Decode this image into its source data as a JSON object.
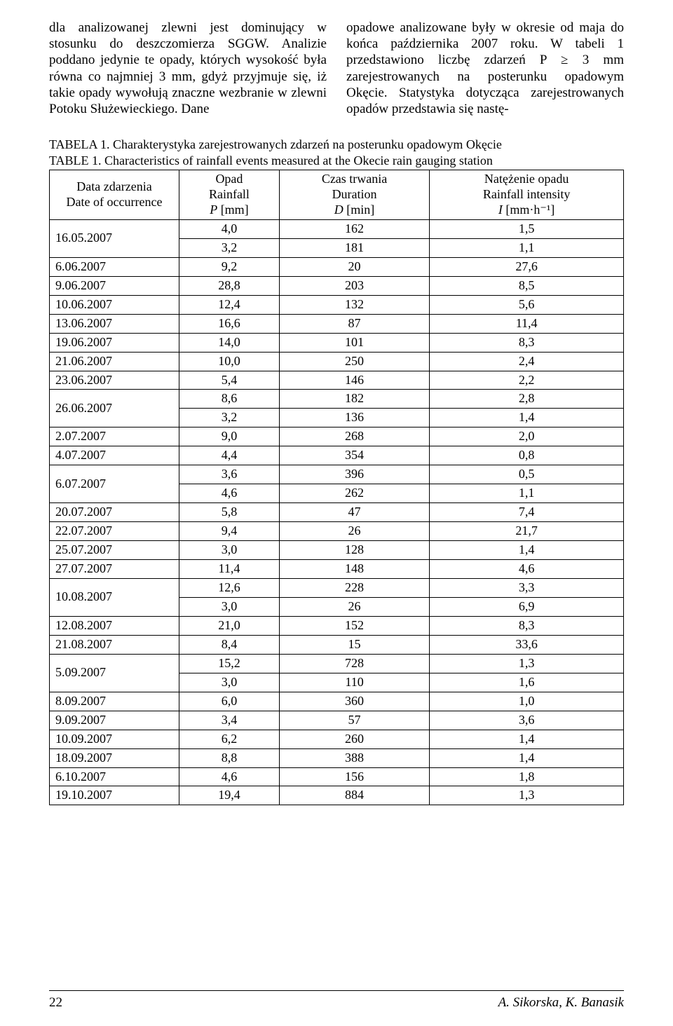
{
  "paragraphs": {
    "left": "dla analizowanej zlewni jest dominujący w stosunku do deszczomierza SGGW. Analizie poddano jedynie te opady, których wysokość była równa co najmniej 3 mm, gdyż przyjmuje się, iż takie opady wywołują znaczne wezbranie w zlewni Potoku Służewieckiego. Dane",
    "right": "opadowe analizowane były w okresie od maja do końca października 2007 roku. W tabeli 1 przedstawiono liczbę zdarzeń P ≥ 3 mm zarejestrowanych na posterunku opadowym Okęcie. Statystyka dotycząca zarejestrowanych opadów przedstawia się nastę-"
  },
  "tableCaption": {
    "line1": "TABELA 1. Charakterystyka zarejestrowanych zdarzeń na posterunku opadowym Okęcie",
    "line2": "TABLE 1. Characteristics of rainfall events measured at the Okecie rain gauging station"
  },
  "table": {
    "type": "table",
    "columns": [
      {
        "key": "date",
        "label_pl": "Data zdarzenia",
        "label_en": "Date of occurrence",
        "unit": ""
      },
      {
        "key": "P",
        "label_pl": "Opad",
        "label_en": "Rainfall",
        "symbol": "P",
        "unit": "[mm]"
      },
      {
        "key": "D",
        "label_pl": "Czas trwania",
        "label_en": "Duration",
        "symbol": "D",
        "unit": "[min]"
      },
      {
        "key": "I",
        "label_pl": "Natężenie opadu",
        "label_en": "Rainfall intensity",
        "symbol": "I",
        "unit": "[mm·h⁻¹]"
      }
    ],
    "groups": [
      {
        "date": "16.05.2007",
        "rows": [
          {
            "P": "4,0",
            "D": "162",
            "I": "1,5"
          },
          {
            "P": "3,2",
            "D": "181",
            "I": "1,1"
          }
        ]
      },
      {
        "date": "6.06.2007",
        "rows": [
          {
            "P": "9,2",
            "D": "20",
            "I": "27,6"
          }
        ]
      },
      {
        "date": "9.06.2007",
        "rows": [
          {
            "P": "28,8",
            "D": "203",
            "I": "8,5"
          }
        ]
      },
      {
        "date": "10.06.2007",
        "rows": [
          {
            "P": "12,4",
            "D": "132",
            "I": "5,6"
          }
        ]
      },
      {
        "date": "13.06.2007",
        "rows": [
          {
            "P": "16,6",
            "D": "87",
            "I": "11,4"
          }
        ]
      },
      {
        "date": "19.06.2007",
        "rows": [
          {
            "P": "14,0",
            "D": "101",
            "I": "8,3"
          }
        ]
      },
      {
        "date": "21.06.2007",
        "rows": [
          {
            "P": "10,0",
            "D": "250",
            "I": "2,4"
          }
        ]
      },
      {
        "date": "23.06.2007",
        "rows": [
          {
            "P": "5,4",
            "D": "146",
            "I": "2,2"
          }
        ]
      },
      {
        "date": "26.06.2007",
        "rows": [
          {
            "P": "8,6",
            "D": "182",
            "I": "2,8"
          },
          {
            "P": "3,2",
            "D": "136",
            "I": "1,4"
          }
        ]
      },
      {
        "date": "2.07.2007",
        "rows": [
          {
            "P": "9,0",
            "D": "268",
            "I": "2,0"
          }
        ]
      },
      {
        "date": "4.07.2007",
        "rows": [
          {
            "P": "4,4",
            "D": "354",
            "I": "0,8"
          }
        ]
      },
      {
        "date": "6.07.2007",
        "rows": [
          {
            "P": "3,6",
            "D": "396",
            "I": "0,5"
          },
          {
            "P": "4,6",
            "D": "262",
            "I": "1,1"
          }
        ]
      },
      {
        "date": "20.07.2007",
        "rows": [
          {
            "P": "5,8",
            "D": "47",
            "I": "7,4"
          }
        ]
      },
      {
        "date": "22.07.2007",
        "rows": [
          {
            "P": "9,4",
            "D": "26",
            "I": "21,7"
          }
        ]
      },
      {
        "date": "25.07.2007",
        "rows": [
          {
            "P": "3,0",
            "D": "128",
            "I": "1,4"
          }
        ]
      },
      {
        "date": "27.07.2007",
        "rows": [
          {
            "P": "11,4",
            "D": "148",
            "I": "4,6"
          }
        ]
      },
      {
        "date": "10.08.2007",
        "rows": [
          {
            "P": "12,6",
            "D": "228",
            "I": "3,3"
          },
          {
            "P": "3,0",
            "D": "26",
            "I": "6,9"
          }
        ]
      },
      {
        "date": "12.08.2007",
        "rows": [
          {
            "P": "21,0",
            "D": "152",
            "I": "8,3"
          }
        ]
      },
      {
        "date": "21.08.2007",
        "rows": [
          {
            "P": "8,4",
            "D": "15",
            "I": "33,6"
          }
        ]
      },
      {
        "date": "5.09.2007",
        "rows": [
          {
            "P": "15,2",
            "D": "728",
            "I": "1,3"
          },
          {
            "P": "3,0",
            "D": "110",
            "I": "1,6"
          }
        ]
      },
      {
        "date": "8.09.2007",
        "rows": [
          {
            "P": "6,0",
            "D": "360",
            "I": "1,0"
          }
        ]
      },
      {
        "date": "9.09.2007",
        "rows": [
          {
            "P": "3,4",
            "D": "57",
            "I": "3,6"
          }
        ]
      },
      {
        "date": "10.09.2007",
        "rows": [
          {
            "P": "6,2",
            "D": "260",
            "I": "1,4"
          }
        ]
      },
      {
        "date": "18.09.2007",
        "rows": [
          {
            "P": "8,8",
            "D": "388",
            "I": "1,4"
          }
        ]
      },
      {
        "date": "6.10.2007",
        "rows": [
          {
            "P": "4,6",
            "D": "156",
            "I": "1,8"
          }
        ]
      },
      {
        "date": "19.10.2007",
        "rows": [
          {
            "P": "19,4",
            "D": "884",
            "I": "1,3"
          }
        ]
      }
    ],
    "border_color": "#000000",
    "background_color": "#ffffff",
    "font_size_pt": 14
  },
  "footer": {
    "page": "22",
    "authors": "A. Sikorska, K. Banasik"
  }
}
